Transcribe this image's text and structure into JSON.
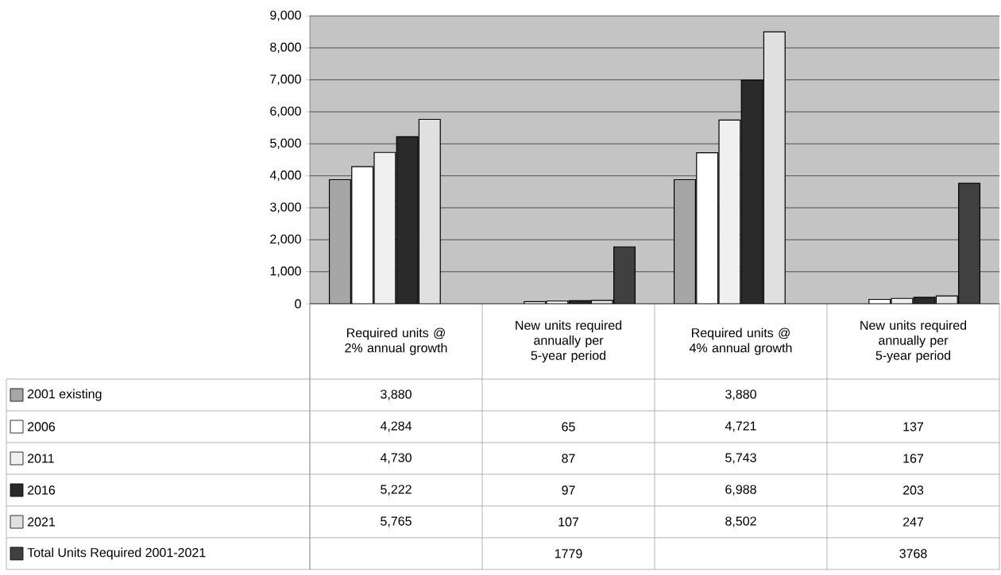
{
  "chart_data": {
    "type": "bar",
    "categories": [
      "Required units @ 2% annual growth",
      "New units required annually per 5-year period",
      "Required units @ 4% annual growth",
      "New units required annually per 5-year period"
    ],
    "series": [
      {
        "name": "2001 existing",
        "color": "#a6a6a6",
        "values": [
          3880,
          null,
          3880,
          null
        ],
        "value_labels": [
          "3,880",
          null,
          "3,880",
          null
        ]
      },
      {
        "name": "2006",
        "color": "#ffffff",
        "values": [
          4284,
          65,
          4721,
          137
        ],
        "value_labels": [
          "4,284",
          "65",
          "4,721",
          "137"
        ]
      },
      {
        "name": "2011",
        "color": "#f0f0f0",
        "values": [
          4730,
          87,
          5743,
          167
        ],
        "value_labels": [
          "4,730",
          "87",
          "5,743",
          "167"
        ]
      },
      {
        "name": "2016",
        "color": "#2a2a2a",
        "values": [
          5222,
          97,
          6988,
          203
        ],
        "value_labels": [
          "5,222",
          "97",
          "6,988",
          "203"
        ]
      },
      {
        "name": "2021",
        "color": "#e0e0e0",
        "values": [
          5765,
          107,
          8502,
          247
        ],
        "value_labels": [
          "5,765",
          "107",
          "8,502",
          "247"
        ]
      },
      {
        "name": "Total Units Required 2001-2021",
        "color": "#404040",
        "values": [
          null,
          1779,
          null,
          3768
        ],
        "value_labels": [
          null,
          "1779",
          null,
          "3768"
        ]
      }
    ],
    "ylim": [
      0,
      9000
    ],
    "yticks": [
      0,
      {
        "value": 1000,
        "label": "1,000"
      },
      {
        "value": 2000,
        "label": "2,000"
      },
      {
        "value": 3000,
        "label": "3,000"
      },
      {
        "value": 4000,
        "label": "4,000"
      },
      {
        "value": 5000,
        "label": "5,000"
      },
      {
        "value": 6000,
        "label": "6,000"
      },
      {
        "value": 7000,
        "label": "7,000"
      },
      {
        "value": 8000,
        "label": "8,000"
      },
      {
        "value": 9000,
        "label": "9,000"
      }
    ],
    "grid": "y",
    "legend": "bottom"
  }
}
